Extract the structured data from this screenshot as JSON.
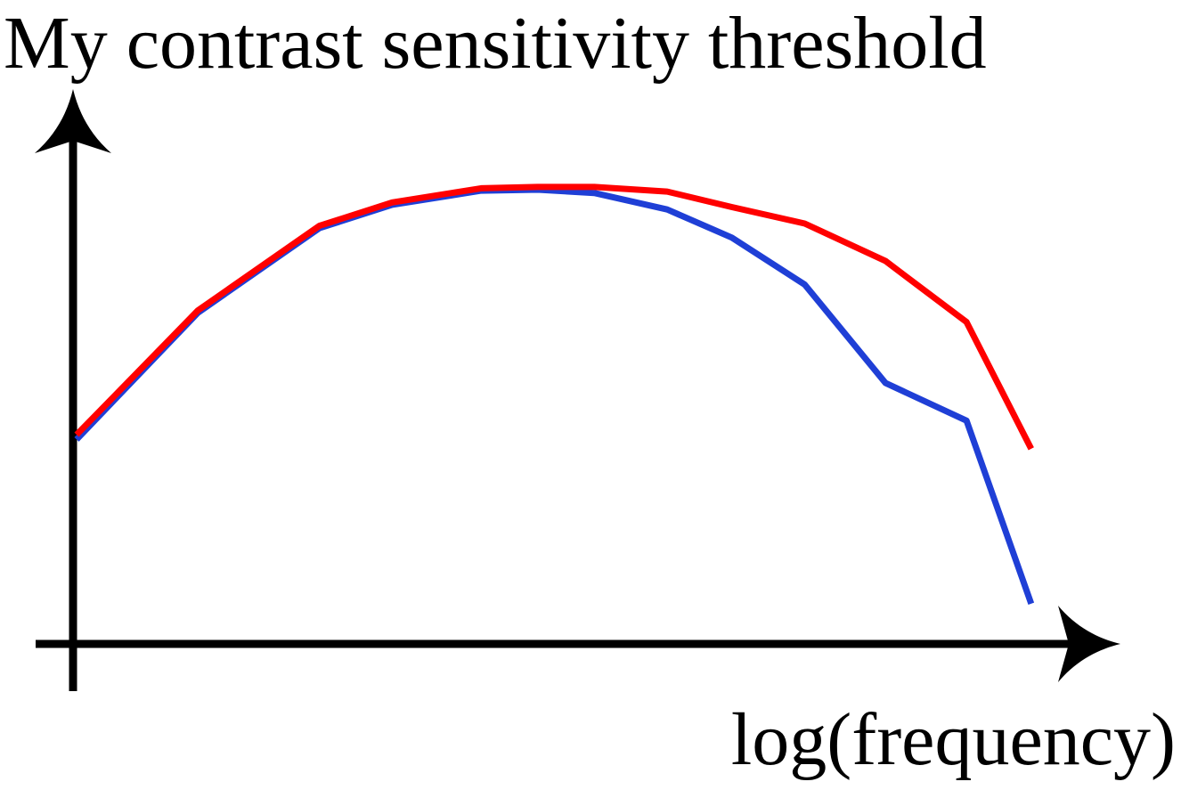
{
  "chart_data": {
    "type": "line",
    "title": "My contrast sensitivity threshold",
    "xlabel": "log(frequency)",
    "ylabel": "",
    "xlim": [
      0,
      12
    ],
    "ylim": [
      0,
      10
    ],
    "grid": false,
    "legend": "none",
    "x": [
      0,
      1.5,
      3,
      3.9,
      5,
      5.7,
      6.4,
      7.3,
      8.1,
      9,
      10,
      11,
      11.8
    ],
    "series": [
      {
        "color": "#1f3fd6",
        "x": [
          0,
          1.5,
          3,
          3.9,
          5,
          5.7,
          6.4,
          7.3,
          8.1,
          9,
          10,
          11,
          11.8
        ],
        "values": [
          4.3,
          7.0,
          8.8,
          9.3,
          9.6,
          9.62,
          9.55,
          9.2,
          8.6,
          7.6,
          5.5,
          4.7,
          0.8
        ]
      },
      {
        "color": "#ff0000",
        "x": [
          0,
          1.5,
          3,
          3.9,
          5,
          5.7,
          6.4,
          7.3,
          8.1,
          9,
          10,
          11,
          11.8
        ],
        "values": [
          4.4,
          7.05,
          8.85,
          9.35,
          9.65,
          9.68,
          9.68,
          9.58,
          9.25,
          8.9,
          8.1,
          6.8,
          4.1
        ]
      }
    ]
  }
}
